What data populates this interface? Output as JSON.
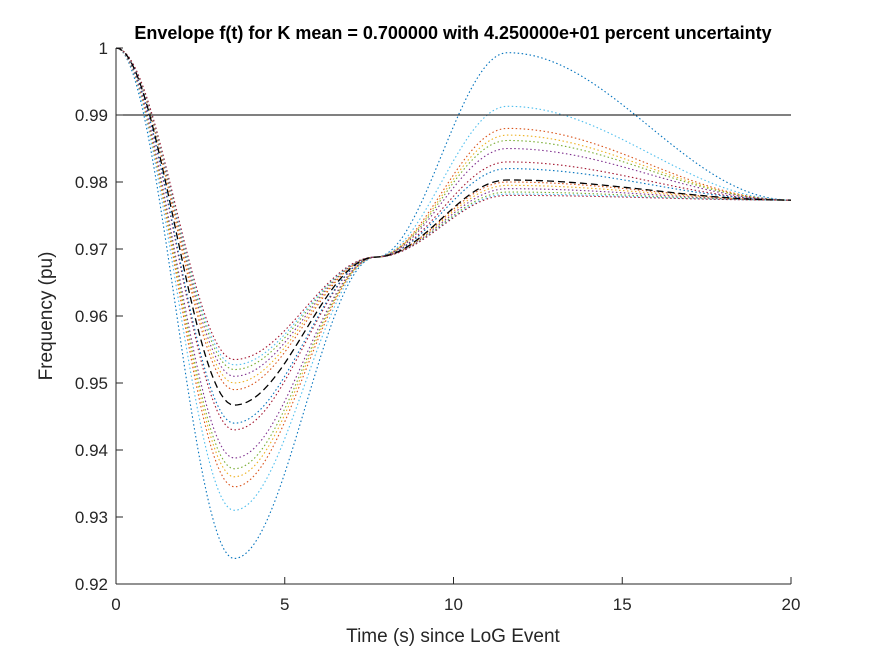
{
  "chart_data": {
    "type": "line",
    "title": "Envelope f(t) for K mean = 0.700000 with 4.250000e+01 percent uncertainty",
    "xlabel": "Time (s) since LoG Event",
    "ylabel": "Frequency (pu)",
    "xlim": [
      0,
      20
    ],
    "ylim": [
      0.92,
      1.0
    ],
    "x_ticks": [
      0,
      5,
      10,
      15,
      20
    ],
    "y_ticks": [
      0.92,
      0.93,
      0.94,
      0.95,
      0.96,
      0.97,
      0.98,
      0.99,
      1.0
    ],
    "x_tick_labels": [
      "0",
      "5",
      "10",
      "15",
      "20"
    ],
    "y_tick_labels": [
      "0.92",
      "0.93",
      "0.94",
      "0.95",
      "0.96",
      "0.97",
      "0.98",
      "0.99",
      "1"
    ],
    "grid": false,
    "legend": "none",
    "model": {
      "initial": 1.0,
      "settle": 0.9773,
      "crossing_t": 7.7,
      "crossing_f": 0.9688,
      "nadir_t": 3.5,
      "peak_t": 11.6
    },
    "series": [
      {
        "style": "dotted",
        "color": "#0072BD",
        "nadir": 0.9238,
        "peak": 0.9993
      },
      {
        "style": "dotted",
        "color": "#4DBEEE",
        "nadir": 0.931,
        "peak": 0.9913
      },
      {
        "style": "dotted",
        "color": "#D95319",
        "nadir": 0.9345,
        "peak": 0.988
      },
      {
        "style": "dotted",
        "color": "#EDB120",
        "nadir": 0.936,
        "peak": 0.987
      },
      {
        "style": "dotted",
        "color": "#77AC30",
        "nadir": 0.9372,
        "peak": 0.9862
      },
      {
        "style": "dotted",
        "color": "#7E2F8E",
        "nadir": 0.9388,
        "peak": 0.985
      },
      {
        "style": "dotted",
        "color": "#A2142F",
        "nadir": 0.943,
        "peak": 0.983
      },
      {
        "style": "dotted",
        "color": "#0072BD",
        "nadir": 0.944,
        "peak": 0.982
      },
      {
        "style": "dotted",
        "color": "#D95319",
        "nadir": 0.949,
        "peak": 0.98
      },
      {
        "style": "dotted",
        "color": "#EDB120",
        "nadir": 0.95,
        "peak": 0.9795
      },
      {
        "style": "dotted",
        "color": "#7E2F8E",
        "nadir": 0.951,
        "peak": 0.979
      },
      {
        "style": "dotted",
        "color": "#77AC30",
        "nadir": 0.952,
        "peak": 0.9785
      },
      {
        "style": "dotted",
        "color": "#4DBEEE",
        "nadir": 0.9527,
        "peak": 0.9782
      },
      {
        "style": "dotted",
        "color": "#A2142F",
        "nadir": 0.9535,
        "peak": 0.978
      },
      {
        "style": "dashed",
        "color": "#000000",
        "nadir": 0.9467,
        "peak": 0.9803
      }
    ],
    "reference_line": {
      "y": 0.99,
      "color": "#000000"
    }
  }
}
